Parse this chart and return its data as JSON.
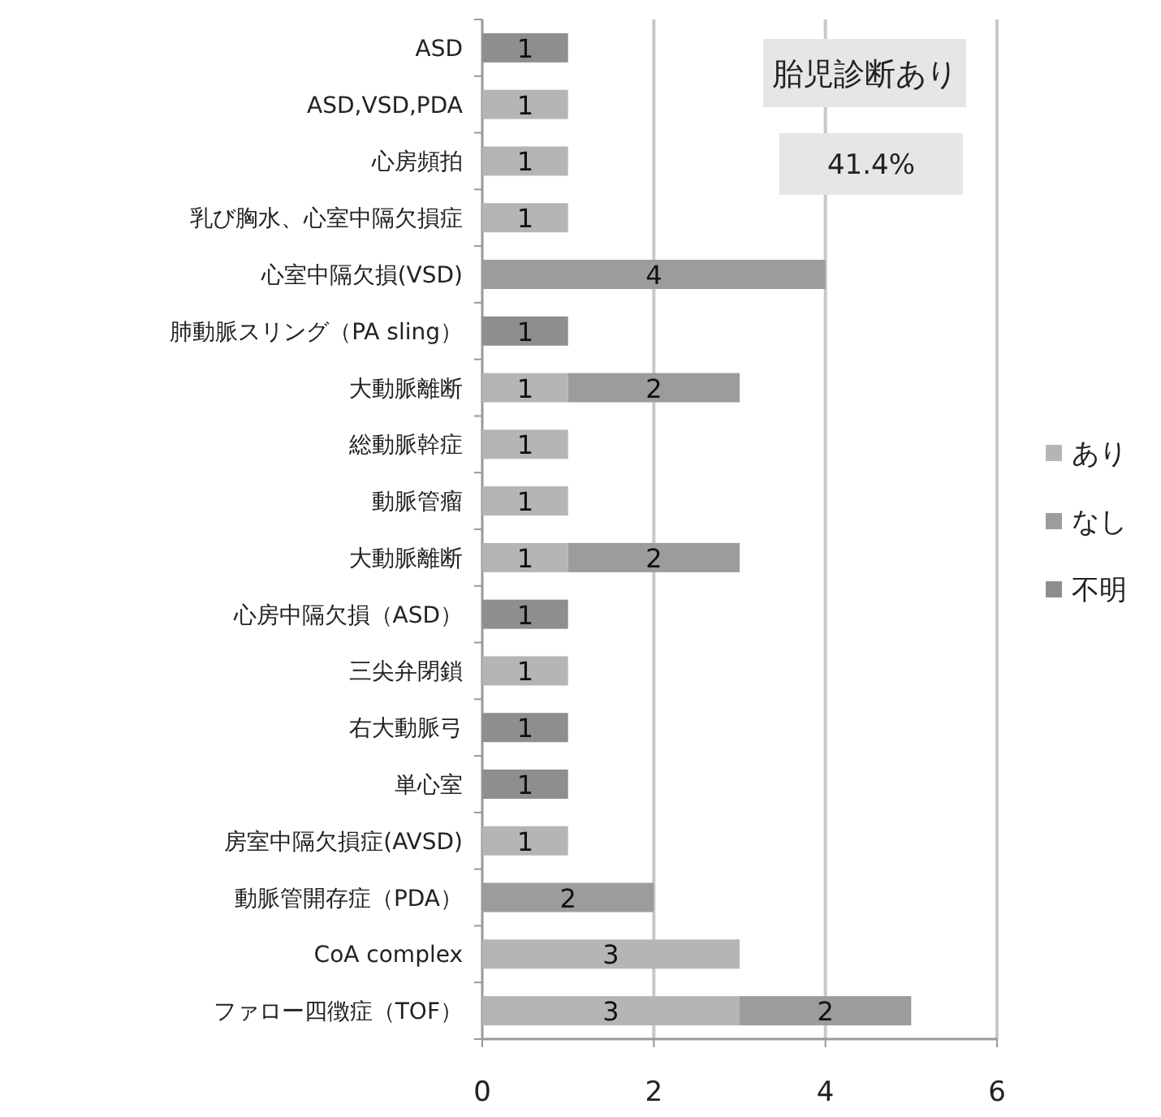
{
  "chart_data": {
    "type": "bar",
    "orientation": "horizontal",
    "stacked": true,
    "categories": [
      "ASD",
      "ASD,VSD,PDA",
      "心房頻拍",
      "乳び胸水、心室中隔欠損症",
      "心室中隔欠損(VSD)",
      "肺動脈スリング（PA sling）",
      "大動脈離断",
      "総動脈幹症",
      "動脈管瘤",
      "大動脈離断",
      "心房中隔欠損（ASD）",
      "三尖弁閉鎖",
      "右大動脈弓",
      "単心室",
      "房室中隔欠損症(AVSD)",
      "動脈管開存症（PDA）",
      "CoA complex",
      "ファロー四徴症（TOF）"
    ],
    "series": [
      {
        "name": "あり",
        "color": "#b5b5b5",
        "values": [
          null,
          1,
          1,
          1,
          null,
          null,
          1,
          1,
          1,
          1,
          null,
          1,
          null,
          null,
          1,
          null,
          3,
          3
        ]
      },
      {
        "name": "なし",
        "color": "#9c9c9c",
        "values": [
          null,
          null,
          null,
          null,
          4,
          null,
          2,
          null,
          null,
          2,
          null,
          null,
          null,
          null,
          null,
          2,
          null,
          2
        ]
      },
      {
        "name": "不明",
        "color": "#8e8e8e",
        "values": [
          1,
          null,
          null,
          null,
          null,
          1,
          null,
          null,
          null,
          null,
          1,
          null,
          1,
          1,
          null,
          null,
          null,
          null
        ]
      }
    ],
    "xlim": [
      0,
      6
    ],
    "xticks": [
      0,
      2,
      4,
      6
    ],
    "grid": "x",
    "legend": "right",
    "data_labels": true,
    "annotations": [
      "胎児診断あり",
      "41.4%"
    ]
  }
}
